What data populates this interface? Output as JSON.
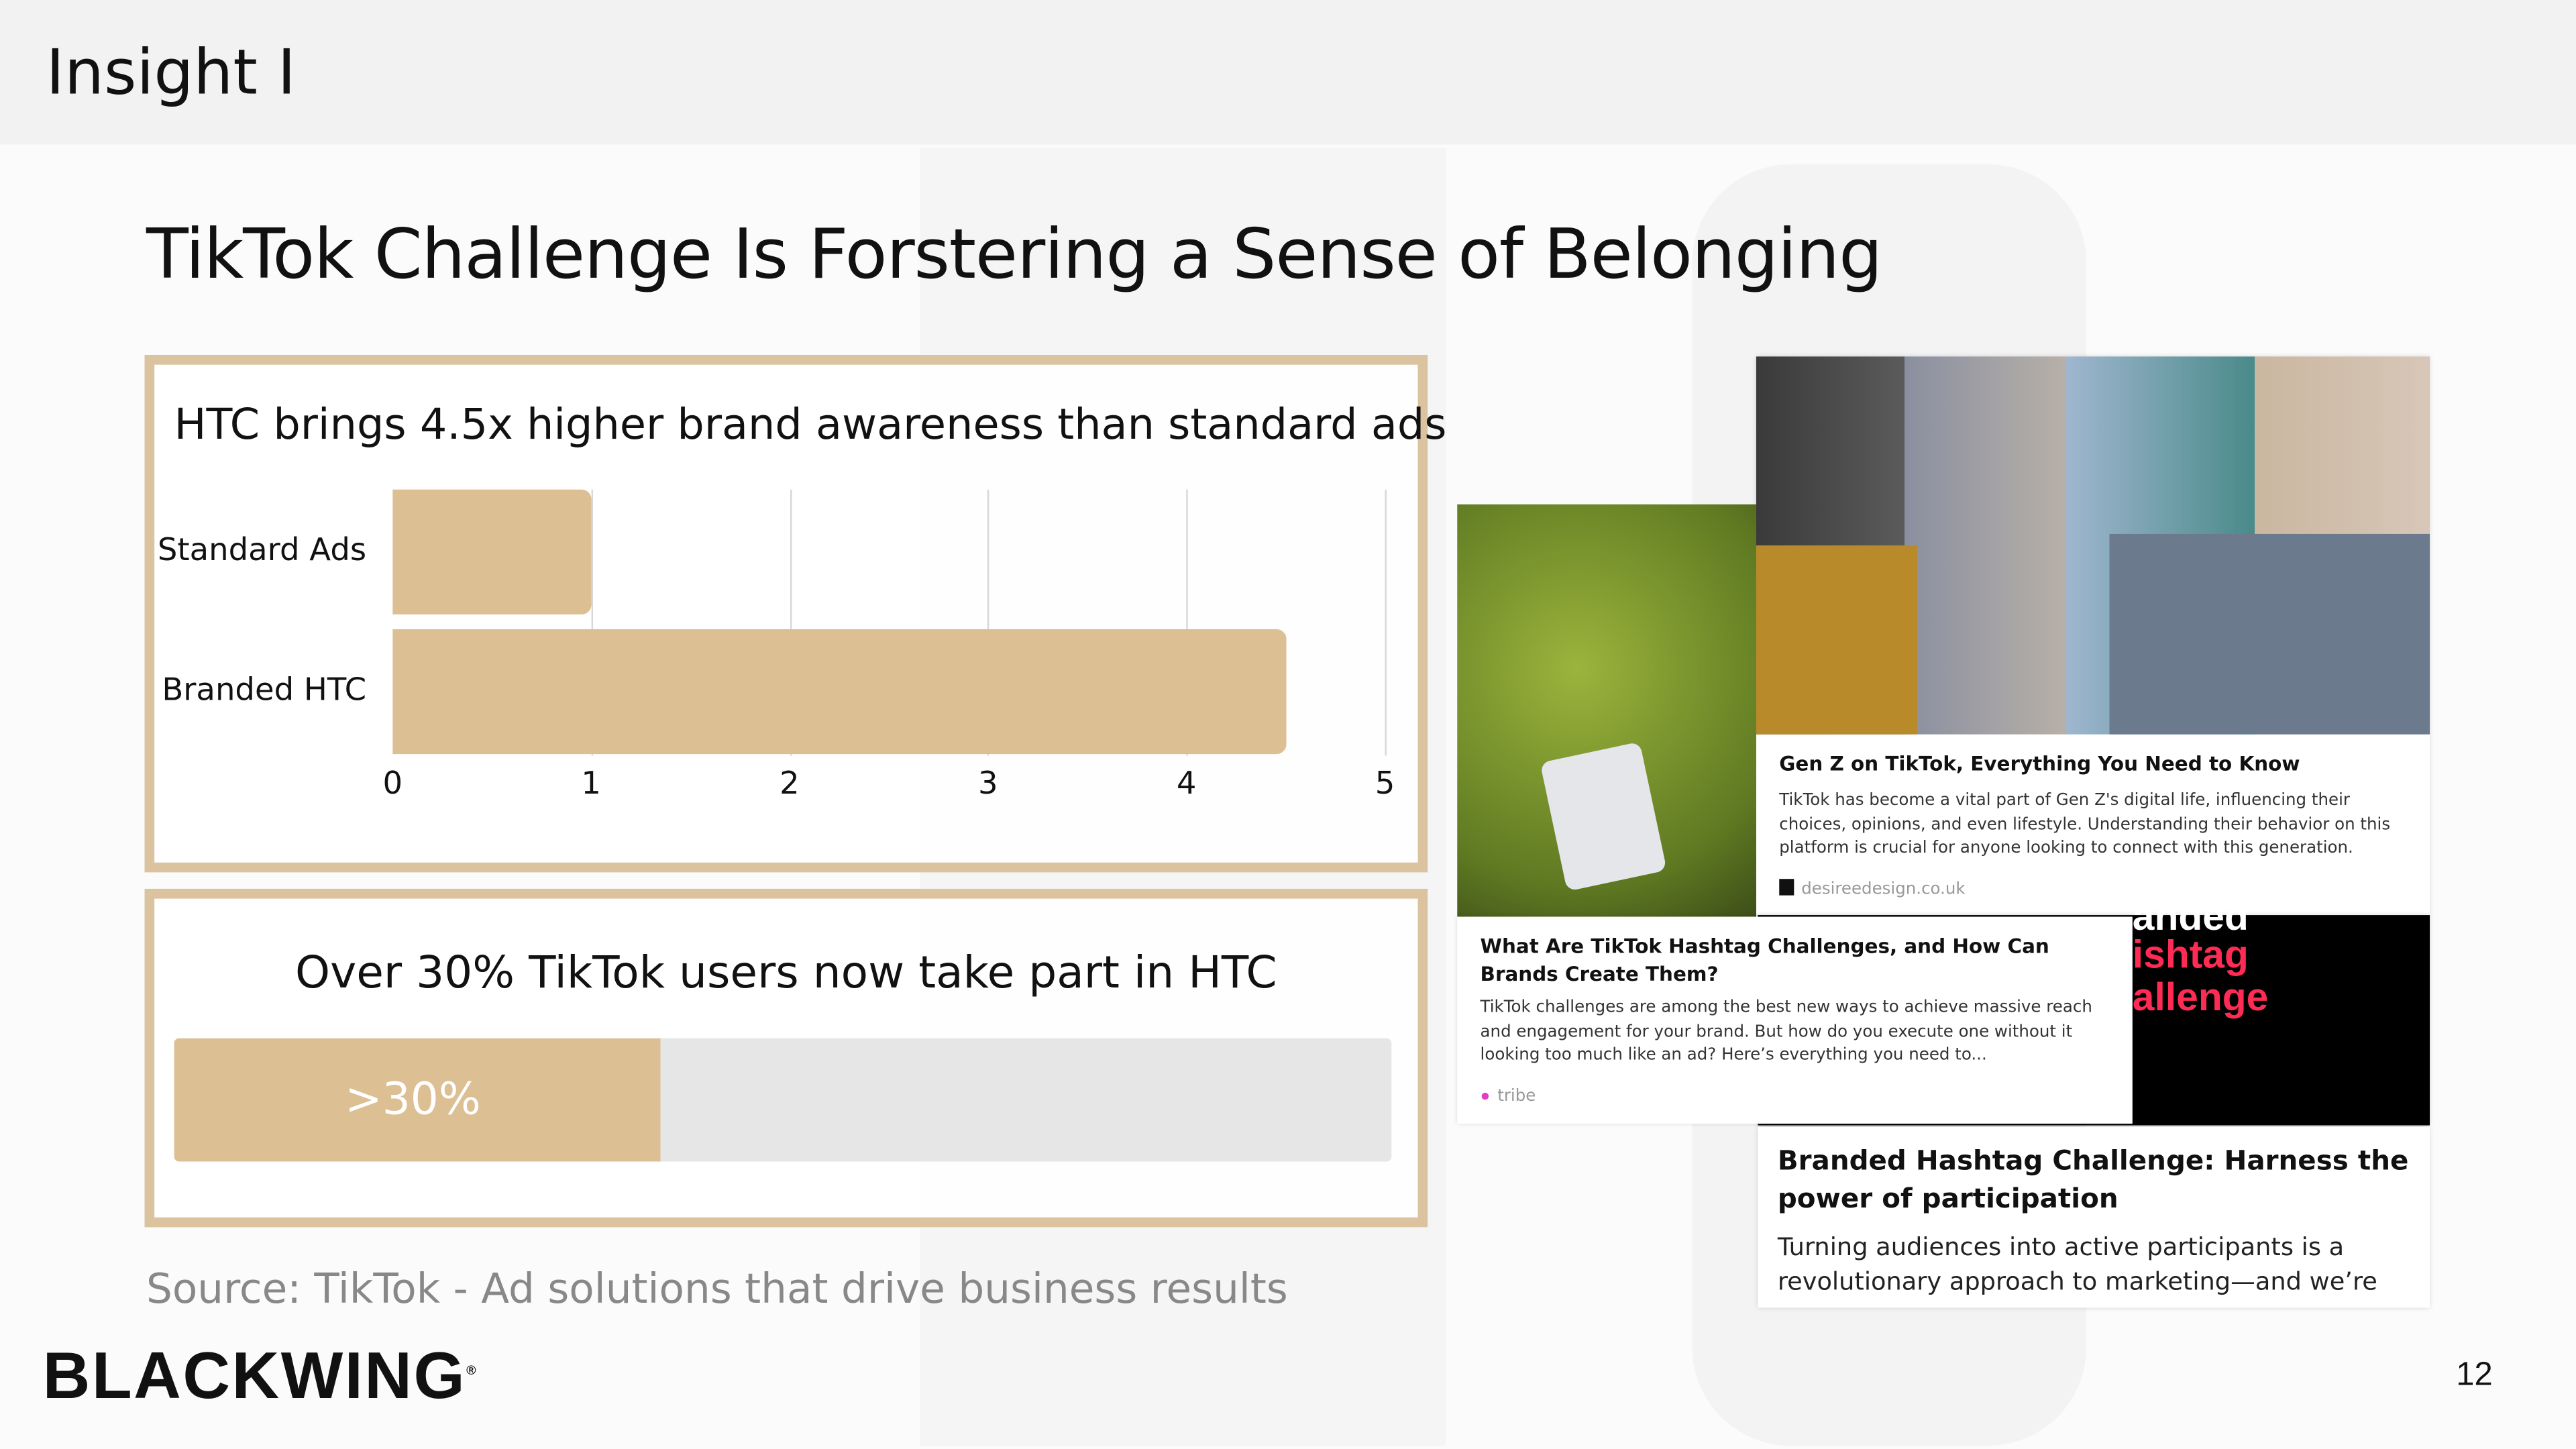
{
  "header": {
    "section_title": "Insight I"
  },
  "slide": {
    "title": "TikTok Challenge Is Forstering a Sense of Belonging",
    "source": "Source: TikTok - Ad solutions that drive business results",
    "page_number": "12",
    "logo": "BLACKWING"
  },
  "chart_data": {
    "type": "bar",
    "orientation": "horizontal",
    "title": "HTC brings 4.5x higher brand awareness than standard ads",
    "categories": [
      "Standard Ads",
      "Branded HTC"
    ],
    "values": [
      1,
      4.5
    ],
    "xlim": [
      0,
      5
    ],
    "xticks": [
      "0",
      "1",
      "2",
      "3",
      "4",
      "5"
    ],
    "grid": true,
    "bar_color": "#dcbf93"
  },
  "progress": {
    "title": "Over 30% TikTok users now take part in HTC",
    "label": ">30%",
    "fill_percent": 40,
    "fill_color": "#dcbf93",
    "track_color": "#e6e6e6"
  },
  "cards": [
    {
      "title": "Gen Z on TikTok, Everything You Need to Know",
      "body": "TikTok has become a vital part of Gen Z's digital life, influencing their choices, opinions, and even lifestyle. Understanding their behavior on this platform is crucial for anyone looking to connect with this generation.",
      "source": "desireedesign.co.uk"
    },
    {
      "title": "What Are TikTok Hashtag Challenges, and How Can Brands Create Them?",
      "body": "TikTok challenges are among the best new ways to achieve massive reach and engagement for your brand. But how do you execute one without it looking too much like an ad? Here’s everything you need to...",
      "source": "tribe"
    },
    {
      "title": "Branded Hashtag Challenge: Harness the power of participation",
      "body": "Turning audiences into active participants is a revolutionary approach to marketing—and we’re",
      "image_text": [
        "anded",
        "ishtag",
        "allenge"
      ]
    }
  ]
}
